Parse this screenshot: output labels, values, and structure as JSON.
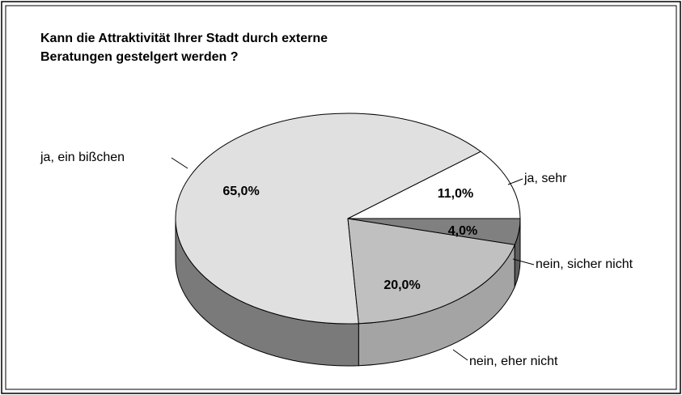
{
  "chart_data": {
    "type": "pie",
    "title": "Kann die Attraktivität Ihrer Stadt durch externe Beratungen gestelgert werden ?",
    "categories": [
      "ja, sehr",
      "ja, ein bißchen",
      "nein, eher nicht",
      "nein, sicher nicht"
    ],
    "values": [
      11,
      65,
      20,
      4
    ],
    "value_labels": [
      "11,0%",
      "65,0%",
      "20,0%",
      "4,0%"
    ],
    "colors": [
      "#ffffff",
      "#e0e0e0",
      "#c0c0c0",
      "#808080"
    ]
  }
}
